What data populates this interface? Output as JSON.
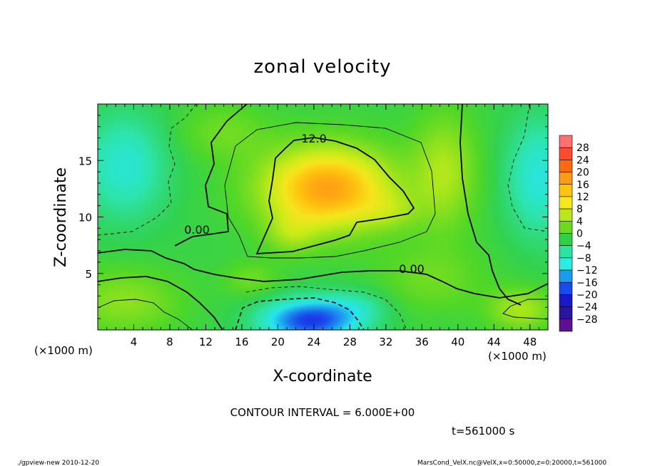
{
  "chart_data": {
    "type": "heatmap",
    "title": "zonal velocity",
    "xlabel": "X-coordinate",
    "ylabel": "Z-coordinate",
    "x_unit": "(×1000 m)",
    "xlim": [
      0,
      50
    ],
    "ylim": [
      0,
      20
    ],
    "x_ticks": [
      "4",
      "8",
      "12",
      "16",
      "20",
      "24",
      "28",
      "32",
      "36",
      "40",
      "44",
      "48"
    ],
    "y_ticks": [
      "5",
      "10",
      "15"
    ],
    "colorbar": {
      "labels": [
        "28",
        "24",
        "20",
        "16",
        "12",
        "8",
        "4",
        "0",
        "−4",
        "−8",
        "−12",
        "−16",
        "−20",
        "−24",
        "−28"
      ],
      "colors": [
        "#ff6f6f",
        "#ff4b2e",
        "#ff6a10",
        "#ff9b14",
        "#ffc40c",
        "#f5e81c",
        "#b9e61c",
        "#6cd820",
        "#2fd048",
        "#2ce3a2",
        "#2ceee0",
        "#1c9aee",
        "#1a4bee",
        "#1a19c9",
        "#2b159e",
        "#5d1090"
      ]
    },
    "contour_labels": [
      "12.0",
      "0.00",
      "0.00"
    ],
    "contour_interval_text": "CONTOUR INTERVAL = 6.000E+00",
    "time_text": "t=561000  s",
    "field": {
      "base": -1.5,
      "blobs": [
        {
          "x": 25.5,
          "z": 12.5,
          "amp": 16.5,
          "sx": 7.0,
          "sz": 3.6
        },
        {
          "x": 21.5,
          "z": 8.5,
          "amp": 4.0,
          "sx": 2.8,
          "sz": 1.8
        },
        {
          "x": 32.5,
          "z": 10.5,
          "amp": 3.0,
          "sx": 3.0,
          "sz": 1.6
        },
        {
          "x": 38.5,
          "z": 14.0,
          "amp": 6.0,
          "sx": 3.5,
          "sz": 5.0
        },
        {
          "x": 23.5,
          "z": 0.8,
          "amp": -17.0,
          "sx": 5.0,
          "sz": 1.8
        },
        {
          "x": 28.5,
          "z": 2.0,
          "amp": -4.0,
          "sx": 4.0,
          "sz": 1.6
        },
        {
          "x": 3.0,
          "z": 14.5,
          "amp": -7.0,
          "sx": 4.5,
          "sz": 4.5
        },
        {
          "x": 49.0,
          "z": 13.5,
          "amp": -7.5,
          "sx": 3.5,
          "sz": 5.0
        },
        {
          "x": 3.0,
          "z": 2.5,
          "amp": 4.5,
          "sx": 6.0,
          "sz": 2.8
        },
        {
          "x": 47.0,
          "z": 1.8,
          "amp": 6.0,
          "sx": 3.5,
          "sz": 1.8
        },
        {
          "x": 37.0,
          "z": 4.5,
          "amp": 3.0,
          "sx": 6.0,
          "sz": 3.0
        },
        {
          "x": 14.0,
          "z": 17.5,
          "amp": 3.0,
          "sx": 5.0,
          "sz": 2.5
        },
        {
          "x": 17.0,
          "z": 4.5,
          "amp": 3.0,
          "sx": 3.0,
          "sz": 1.5
        }
      ]
    }
  },
  "footer": {
    "left": "./gpview-new   2010-12-20",
    "right": "MarsCond_VelX.nc@VelX,x=0:50000,z=0:20000,t=561000"
  }
}
